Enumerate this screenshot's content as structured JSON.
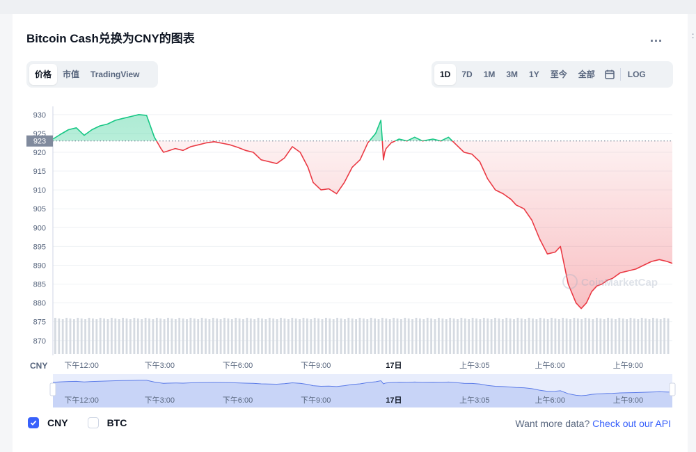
{
  "title": "Bitcoin Cash兑换为CNY的图表",
  "more_label": "...",
  "chart_tabs": [
    "价格",
    "市值",
    "TradingView"
  ],
  "active_chart_tab": "价格",
  "range_tabs": [
    "1D",
    "7D",
    "1M",
    "3M",
    "1Y",
    "至今",
    "全部"
  ],
  "active_range_tab": "1D",
  "log_label": "LOG",
  "icons": {
    "calendar": "calendar-icon",
    "checkbox": "check-icon",
    "watermark": "coinmarketcap-logo"
  },
  "legend": [
    {
      "label": "CNY",
      "checked": true
    },
    {
      "label": "BTC",
      "checked": false
    }
  ],
  "api_prompt": "Want more data?",
  "api_link": "Check out our API",
  "watermark_text": "CoinMarketCap",
  "colors": {
    "up": "#16c784",
    "down": "#ea3943",
    "accent": "#3861fb",
    "axis_text": "#58667e"
  },
  "chart_data": {
    "type": "line",
    "currency_label": "CNY",
    "reference_value": 923,
    "ylim": [
      867,
      932
    ],
    "y_ticks": [
      930,
      925,
      920,
      915,
      910,
      905,
      900,
      895,
      890,
      885,
      880,
      875,
      870
    ],
    "x_ticks": [
      {
        "label": "下午12:00",
        "x": 0.5,
        "bold": false
      },
      {
        "label": "下午3:00",
        "x": 3.5,
        "bold": false
      },
      {
        "label": "下午6:00",
        "x": 6.5,
        "bold": false
      },
      {
        "label": "下午9:00",
        "x": 9.5,
        "bold": false
      },
      {
        "label": "17日",
        "x": 12.5,
        "bold": true
      },
      {
        "label": "上午3:05",
        "x": 15.6,
        "bold": false
      },
      {
        "label": "上午6:00",
        "x": 18.5,
        "bold": false
      },
      {
        "label": "上午9:00",
        "x": 21.5,
        "bold": false
      }
    ],
    "xlim": [
      -0.6,
      23.2
    ],
    "series": [
      {
        "x": [
          -0.6,
          -0.3,
          0,
          0.3,
          0.6,
          0.9,
          1.2,
          1.5,
          1.8,
          2.1,
          2.4,
          2.7,
          3.0,
          3.3,
          3.55,
          3.65,
          3.8,
          4.1,
          4.4,
          4.7,
          5.0,
          5.3,
          5.6,
          5.9,
          6.2,
          6.5,
          6.8,
          7.1,
          7.4,
          7.7,
          8.0,
          8.3,
          8.6,
          8.9,
          9.2,
          9.4,
          9.7,
          10.0,
          10.3,
          10.6,
          10.9,
          11.2,
          11.5,
          11.8,
          12.0,
          12.05,
          12.1,
          12.15,
          12.2,
          12.4,
          12.7,
          13.0,
          13.3,
          13.6,
          14.0,
          14.3,
          14.6,
          14.9,
          15.2,
          15.5,
          15.8,
          16.1,
          16.4,
          16.7,
          17.0,
          17.2,
          17.5,
          17.8,
          18.1,
          18.4,
          18.7,
          18.9,
          19.2,
          19.5,
          19.7,
          19.9,
          20.1,
          20.3,
          20.5,
          20.7,
          20.9,
          21.2,
          21.5,
          21.8,
          22.1,
          22.4,
          22.7,
          23.0,
          23.2
        ],
        "y": [
          923.5,
          924.8,
          926.0,
          926.5,
          924.5,
          926.0,
          927.0,
          927.5,
          928.5,
          929.0,
          929.5,
          930.0,
          929.8,
          924.0,
          921.0,
          920.0,
          920.3,
          921.0,
          920.5,
          921.5,
          922.0,
          922.5,
          922.8,
          922.4,
          922.0,
          921.3,
          920.5,
          920.0,
          918.0,
          917.5,
          917.0,
          918.5,
          921.5,
          920.0,
          916.0,
          912.0,
          910.0,
          910.3,
          909.0,
          912.0,
          916.0,
          918.0,
          922.5,
          925.0,
          928.5,
          924.0,
          918.0,
          920.0,
          921.0,
          922.5,
          923.5,
          923.0,
          924.0,
          923.0,
          923.5,
          923.0,
          924.0,
          922.0,
          920.0,
          919.5,
          917.5,
          913.0,
          910.0,
          909.0,
          907.5,
          906.0,
          905.0,
          902.0,
          897.0,
          893.0,
          893.5,
          895.0,
          885.0,
          880.0,
          878.5,
          880.0,
          883.0,
          884.5,
          885.0,
          886.0,
          886.5,
          888.0,
          888.5,
          889.0,
          890.0,
          891.0,
          891.5,
          891.0,
          890.5
        ]
      }
    ],
    "volume_bars": 164,
    "navigator": {
      "x_ticks": [
        "下午12:00",
        "下午3:00",
        "下午6:00",
        "下午9:00",
        "17日",
        "上午3:05",
        "上午6:00",
        "上午9:00"
      ]
    }
  }
}
